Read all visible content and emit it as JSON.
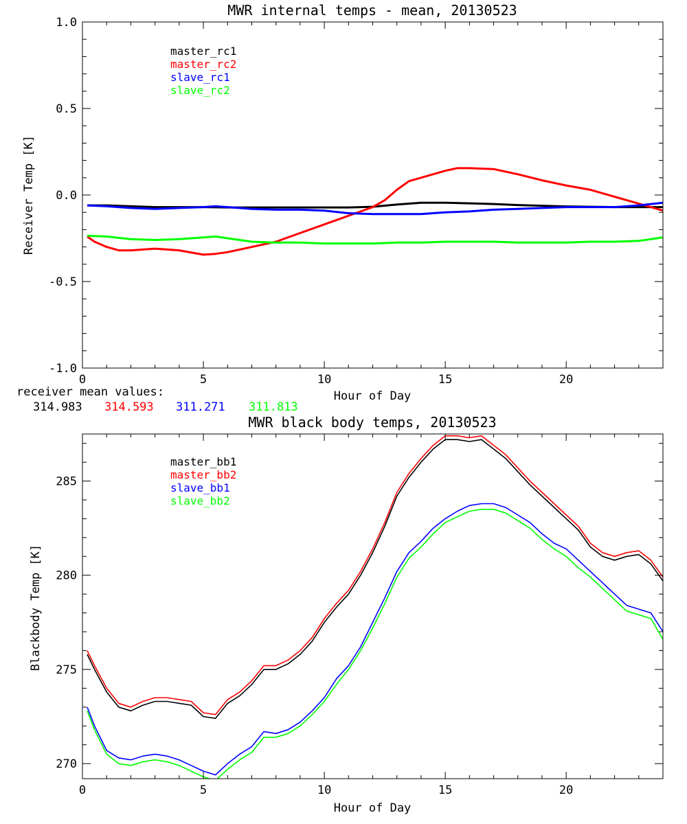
{
  "colors": {
    "master_rc1": "#000000",
    "master_rc2": "#ff0000",
    "slave_rc1": "#0000ff",
    "slave_rc2": "#00ff00",
    "master_bb1": "#000000",
    "master_bb2": "#ff0000",
    "slave_bb1": "#0000ff",
    "slave_bb2": "#00ff00"
  },
  "receiver_mean": {
    "label": "receiver mean values:",
    "values": [
      "314.983",
      "314.593",
      "311.271",
      "311.813"
    ]
  },
  "chart_data": [
    {
      "type": "line",
      "title": "MWR internal temps - mean, 20130523",
      "xlabel": "Hour of Day",
      "ylabel": "Receiver Temp [K]",
      "xlim": [
        0,
        24
      ],
      "ylim": [
        -1.0,
        1.0
      ],
      "xticks": [
        0,
        5,
        10,
        15,
        20
      ],
      "xtick_labels": [
        "0",
        "5",
        "10",
        "15",
        "20"
      ],
      "yticks": [
        -1.0,
        -0.5,
        0.0,
        0.5,
        1.0
      ],
      "ytick_labels": [
        "-1.0",
        "-0.5",
        "0.0",
        "0.5",
        "1.0"
      ],
      "grid": false,
      "legend": "top-left",
      "series": [
        {
          "name": "master_rc1",
          "x": [
            0.2,
            1,
            2,
            3,
            4,
            5,
            6,
            7,
            8,
            9,
            10,
            11,
            12,
            13,
            14,
            15,
            16,
            17,
            18,
            19,
            20,
            21,
            22,
            23,
            24
          ],
          "values": [
            -0.06,
            -0.06,
            -0.065,
            -0.07,
            -0.07,
            -0.07,
            -0.072,
            -0.072,
            -0.072,
            -0.072,
            -0.072,
            -0.072,
            -0.068,
            -0.055,
            -0.045,
            -0.045,
            -0.048,
            -0.052,
            -0.058,
            -0.062,
            -0.066,
            -0.068,
            -0.07,
            -0.07,
            -0.07
          ]
        },
        {
          "name": "master_rc2",
          "x": [
            0.2,
            0.5,
            1,
            1.5,
            2,
            3,
            4,
            5,
            5.5,
            6,
            7,
            8,
            9,
            10,
            11,
            12,
            12.5,
            13,
            13.5,
            14,
            15,
            15.5,
            16,
            17,
            18,
            19,
            20,
            21,
            22,
            23,
            24
          ],
          "values": [
            -0.24,
            -0.27,
            -0.3,
            -0.32,
            -0.32,
            -0.31,
            -0.32,
            -0.345,
            -0.34,
            -0.33,
            -0.3,
            -0.27,
            -0.22,
            -0.17,
            -0.12,
            -0.07,
            -0.03,
            0.03,
            0.08,
            0.1,
            0.14,
            0.155,
            0.155,
            0.15,
            0.12,
            0.085,
            0.055,
            0.03,
            -0.01,
            -0.05,
            -0.09
          ]
        },
        {
          "name": "slave_rc1",
          "x": [
            0.2,
            1,
            2,
            3,
            4,
            5,
            5.5,
            6,
            7,
            8,
            9,
            10,
            11,
            12,
            13,
            14,
            15,
            16,
            17,
            18,
            19,
            20,
            21,
            22,
            23,
            24
          ],
          "values": [
            -0.06,
            -0.065,
            -0.075,
            -0.08,
            -0.075,
            -0.07,
            -0.065,
            -0.07,
            -0.08,
            -0.085,
            -0.085,
            -0.09,
            -0.105,
            -0.11,
            -0.11,
            -0.11,
            -0.1,
            -0.095,
            -0.085,
            -0.08,
            -0.075,
            -0.07,
            -0.07,
            -0.07,
            -0.06,
            -0.045
          ]
        },
        {
          "name": "slave_rc2",
          "x": [
            0.2,
            1,
            2,
            3,
            4,
            5,
            5.5,
            6,
            7,
            8,
            9,
            10,
            11,
            12,
            13,
            14,
            15,
            16,
            17,
            18,
            19,
            20,
            21,
            22,
            23,
            24
          ],
          "values": [
            -0.235,
            -0.24,
            -0.255,
            -0.26,
            -0.255,
            -0.245,
            -0.24,
            -0.25,
            -0.27,
            -0.275,
            -0.275,
            -0.28,
            -0.28,
            -0.28,
            -0.275,
            -0.275,
            -0.27,
            -0.27,
            -0.27,
            -0.275,
            -0.275,
            -0.275,
            -0.27,
            -0.27,
            -0.265,
            -0.245
          ]
        }
      ]
    },
    {
      "type": "line",
      "title": "MWR black body temps, 20130523",
      "xlabel": "Hour of Day",
      "ylabel": "Blackbody Temp [K]",
      "xlim": [
        0,
        24
      ],
      "ylim": [
        269.2,
        287.5
      ],
      "xticks": [
        0,
        5,
        10,
        15,
        20
      ],
      "xtick_labels": [
        "0",
        "5",
        "10",
        "15",
        "20"
      ],
      "yticks": [
        270,
        275,
        280,
        285
      ],
      "ytick_labels": [
        "270",
        "275",
        "280",
        "285"
      ],
      "grid": false,
      "legend": "top-left",
      "series": [
        {
          "name": "master_bb1",
          "x": [
            0.2,
            0.5,
            1,
            1.5,
            2,
            2.5,
            3,
            3.5,
            4,
            4.5,
            5,
            5.5,
            6,
            6.5,
            7,
            7.5,
            8,
            8.5,
            9,
            9.5,
            10,
            10.5,
            11,
            11.5,
            12,
            12.5,
            13,
            13.5,
            14,
            14.5,
            15,
            15.5,
            16,
            16.5,
            17,
            17.5,
            18,
            18.5,
            19,
            19.5,
            20,
            20.5,
            21,
            21.5,
            22,
            22.5,
            23,
            23.5,
            24
          ],
          "values": [
            275.8,
            275,
            273.8,
            273,
            272.8,
            273.1,
            273.3,
            273.3,
            273.2,
            273.1,
            272.5,
            272.4,
            273.2,
            273.6,
            274.2,
            275,
            275.0,
            275.3,
            275.8,
            276.5,
            277.5,
            278.3,
            279,
            280,
            281.2,
            282.6,
            284.2,
            285.2,
            286,
            286.7,
            287.2,
            287.2,
            287.1,
            287.2,
            286.7,
            286.2,
            285.5,
            284.8,
            284.2,
            283.6,
            283,
            282.4,
            281.5,
            281.0,
            280.8,
            281.0,
            281.1,
            280.6,
            279.7
          ]
        },
        {
          "name": "master_bb2",
          "x": [
            0.2,
            0.5,
            1,
            1.5,
            2,
            2.5,
            3,
            3.5,
            4,
            4.5,
            5,
            5.5,
            6,
            6.5,
            7,
            7.5,
            8,
            8.5,
            9,
            9.5,
            10,
            10.5,
            11,
            11.5,
            12,
            12.5,
            13,
            13.5,
            14,
            14.5,
            15,
            15.5,
            16,
            16.5,
            17,
            17.5,
            18,
            18.5,
            19,
            19.5,
            20,
            20.5,
            21,
            21.5,
            22,
            22.5,
            23,
            23.5,
            24
          ],
          "values": [
            276.0,
            275.2,
            274.0,
            273.2,
            273.0,
            273.3,
            273.5,
            273.5,
            273.4,
            273.3,
            272.7,
            272.6,
            273.4,
            273.8,
            274.4,
            275.2,
            275.2,
            275.5,
            276.0,
            276.7,
            277.7,
            278.5,
            279.2,
            280.2,
            281.4,
            282.8,
            284.4,
            285.4,
            286.2,
            286.9,
            287.4,
            287.4,
            287.3,
            287.4,
            286.9,
            286.4,
            285.7,
            285.0,
            284.4,
            283.8,
            283.2,
            282.6,
            281.7,
            281.2,
            281.0,
            281.2,
            281.3,
            280.8,
            279.9
          ]
        },
        {
          "name": "slave_bb1",
          "x": [
            0.2,
            0.5,
            1,
            1.5,
            2,
            2.5,
            3,
            3.5,
            4,
            4.5,
            5,
            5.5,
            6,
            6.5,
            7,
            7.5,
            8,
            8.5,
            9,
            9.5,
            10,
            10.5,
            11,
            11.5,
            12,
            12.5,
            13,
            13.5,
            14,
            14.5,
            15,
            15.5,
            16,
            16.5,
            17,
            17.5,
            18,
            18.5,
            19,
            19.5,
            20,
            20.5,
            21,
            21.5,
            22,
            22.5,
            23,
            23.5,
            24
          ],
          "values": [
            273.0,
            272,
            270.7,
            270.3,
            270.2,
            270.4,
            270.5,
            270.4,
            270.2,
            269.9,
            269.6,
            269.4,
            270.0,
            270.5,
            270.9,
            271.7,
            271.6,
            271.8,
            272.2,
            272.8,
            273.5,
            274.5,
            275.2,
            276.2,
            277.5,
            278.8,
            280.2,
            281.2,
            281.8,
            282.5,
            283,
            283.4,
            283.7,
            283.8,
            283.8,
            283.6,
            283.2,
            282.8,
            282.2,
            281.7,
            281.4,
            280.8,
            280.2,
            279.6,
            279,
            278.4,
            278.2,
            278.0,
            277.0
          ]
        },
        {
          "name": "slave_bb2",
          "x": [
            0.2,
            0.5,
            1,
            1.5,
            2,
            2.5,
            3,
            3.5,
            4,
            4.5,
            5,
            5.5,
            6,
            6.5,
            7,
            7.5,
            8,
            8.5,
            9,
            9.5,
            10,
            10.5,
            11,
            11.5,
            12,
            12.5,
            13,
            13.5,
            14,
            14.5,
            15,
            15.5,
            16,
            16.5,
            17,
            17.5,
            18,
            18.5,
            19,
            19.5,
            20,
            20.5,
            21,
            21.5,
            22,
            22.5,
            23,
            23.5,
            24
          ],
          "values": [
            272.8,
            271.8,
            270.5,
            270.0,
            269.9,
            270.1,
            270.2,
            270.1,
            269.9,
            269.6,
            269.3,
            269.1,
            269.7,
            270.2,
            270.6,
            271.4,
            271.4,
            271.6,
            272.0,
            272.6,
            273.3,
            274.2,
            275.0,
            276.0,
            277.2,
            278.5,
            279.9,
            280.9,
            281.5,
            282.2,
            282.8,
            283.1,
            283.4,
            283.5,
            283.5,
            283.3,
            282.9,
            282.5,
            281.9,
            281.4,
            281.0,
            280.4,
            279.9,
            279.3,
            278.7,
            278.1,
            277.9,
            277.7,
            276.6
          ]
        }
      ]
    }
  ]
}
